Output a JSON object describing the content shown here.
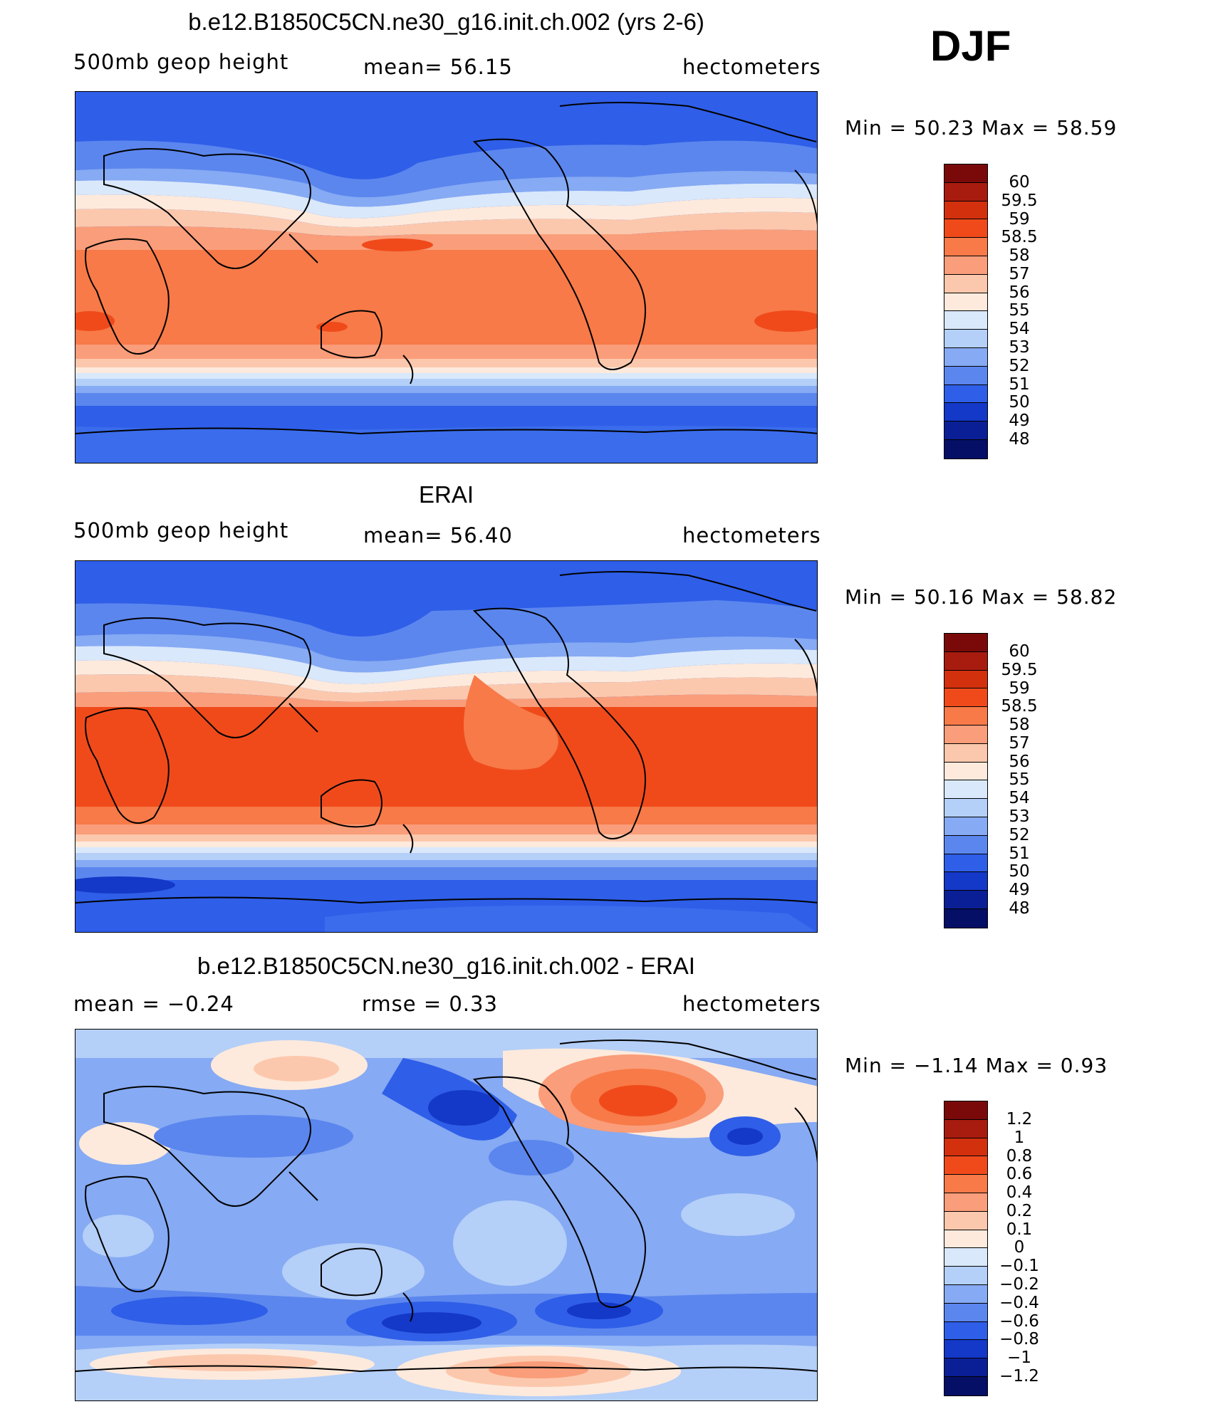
{
  "season": "DJF",
  "panels": [
    {
      "title": "b.e12.B1850C5CN.ne30_g16.init.ch.002 (yrs 2-6)",
      "left_text": "500mb  geop  height",
      "center_text": "mean=   56.15",
      "right_text": "hectometers",
      "minmax": "Min  =    50.23  Max  =    58.59",
      "map_label": "model-map"
    },
    {
      "title": "ERAI",
      "left_text": "500mb  geop  height",
      "center_text": "mean=   56.40",
      "right_text": "hectometers",
      "minmax": "Min  =    50.16  Max  =    58.82",
      "map_label": "obs-map"
    },
    {
      "title": "b.e12.B1850C5CN.ne30_g16.init.ch.002 - ERAI",
      "left_text": "mean  =    −0.24",
      "center_text": "rmse  =     0.33",
      "right_text": "hectometers",
      "minmax": "Min  =   −1.14  Max  =     0.93",
      "map_label": "diff-map"
    }
  ],
  "colorbars": {
    "abs_labels": [
      "60",
      "59.5",
      "59",
      "58.5",
      "58",
      "57",
      "56",
      "55",
      "54",
      "53",
      "52",
      "51",
      "50",
      "49",
      "48"
    ],
    "diff_labels": [
      "1.2",
      "1",
      "0.8",
      "0.6",
      "0.4",
      "0.2",
      "0.1",
      "0",
      "−0.1",
      "−0.2",
      "−0.4",
      "−0.6",
      "−0.8",
      "−1",
      "−1.2"
    ],
    "colors": [
      "#7a0a0a",
      "#a81c0f",
      "#d3300e",
      "#f04a1b",
      "#f77a48",
      "#fa9d7a",
      "#fcc8ad",
      "#fdeadc",
      "#d9e8fb",
      "#b4cff8",
      "#86aaf3",
      "#5b86ee",
      "#2f5ee8",
      "#1438c8",
      "#0a1f96",
      "#050f66"
    ]
  }
}
